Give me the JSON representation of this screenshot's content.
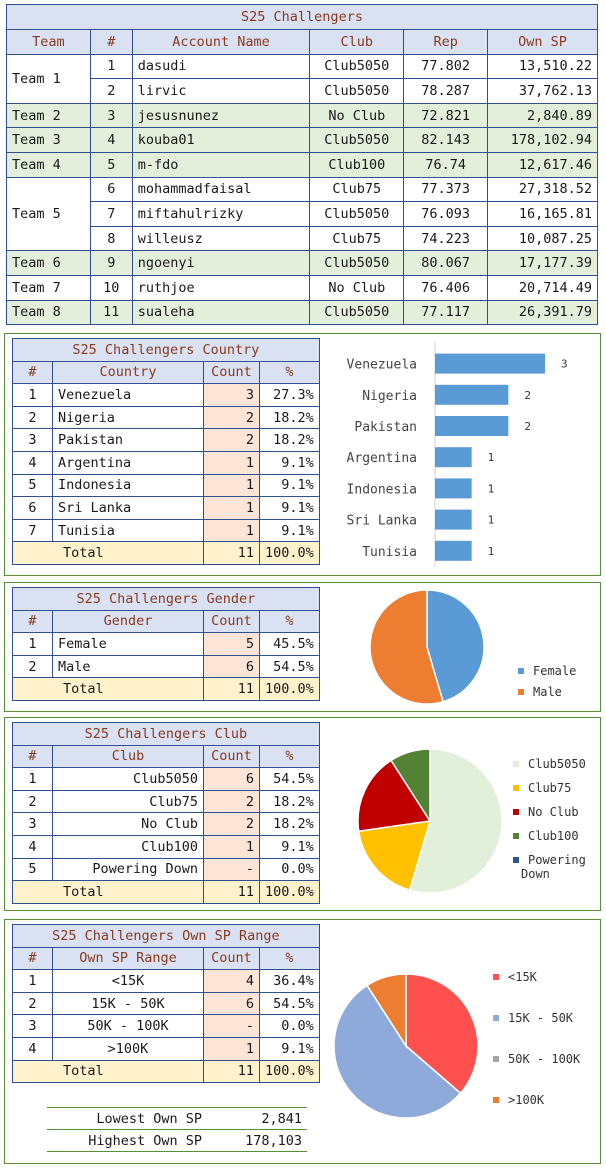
{
  "main": {
    "title": "S25 Challengers",
    "headers": [
      "Team",
      "#",
      "Account Name",
      "Club",
      "Rep",
      "Own SP"
    ],
    "rows": [
      {
        "team": "Team 1",
        "num": "1",
        "name": "dasudi",
        "club": "Club5050",
        "rep": "77.802",
        "sp": "13,510.22"
      },
      {
        "team": "",
        "num": "2",
        "name": "lirvic",
        "club": "Club5050",
        "rep": "78.287",
        "sp": "37,762.13"
      },
      {
        "team": "Team 2",
        "num": "3",
        "name": "jesusnunez",
        "club": "No Club",
        "rep": "72.821",
        "sp": "2,840.89"
      },
      {
        "team": "Team 3",
        "num": "4",
        "name": "kouba01",
        "club": "Club5050",
        "rep": "82.143",
        "sp": "178,102.94"
      },
      {
        "team": "Team 4",
        "num": "5",
        "name": "m-fdo",
        "club": "Club100",
        "rep": "76.74",
        "sp": "12,617.46"
      },
      {
        "team": "Team 5",
        "num": "6",
        "name": "mohammadfaisal",
        "club": "Club75",
        "rep": "77.373",
        "sp": "27,318.52"
      },
      {
        "team": "",
        "num": "7",
        "name": "miftahulrizky",
        "club": "Club5050",
        "rep": "76.093",
        "sp": "16,165.81"
      },
      {
        "team": "",
        "num": "8",
        "name": "willeusz",
        "club": "Club75",
        "rep": "74.223",
        "sp": "10,087.25"
      },
      {
        "team": "Team 6",
        "num": "9",
        "name": "ngoenyi",
        "club": "Club5050",
        "rep": "80.067",
        "sp": "17,177.39"
      },
      {
        "team": "Team 7",
        "num": "10",
        "name": "ruthjoe",
        "club": "No Club",
        "rep": "76.406",
        "sp": "20,714.49"
      },
      {
        "team": "Team 8",
        "num": "11",
        "name": "sualeha",
        "club": "Club5050",
        "rep": "77.117",
        "sp": "26,391.79"
      }
    ]
  },
  "country": {
    "title": "S25 Challengers Country",
    "headers": [
      "#",
      "Country",
      "Count",
      "%"
    ],
    "rows": [
      {
        "num": "1",
        "label": "Venezuela",
        "count": "3",
        "pct": "27.3%"
      },
      {
        "num": "2",
        "label": "Nigeria",
        "count": "2",
        "pct": "18.2%"
      },
      {
        "num": "3",
        "label": "Pakistan",
        "count": "2",
        "pct": "18.2%"
      },
      {
        "num": "4",
        "label": "Argentina",
        "count": "1",
        "pct": "9.1%"
      },
      {
        "num": "5",
        "label": "Indonesia",
        "count": "1",
        "pct": "9.1%"
      },
      {
        "num": "6",
        "label": "Sri Lanka",
        "count": "1",
        "pct": "9.1%"
      },
      {
        "num": "7",
        "label": "Tunisia",
        "count": "1",
        "pct": "9.1%"
      }
    ],
    "total": {
      "label": "Total",
      "count": "11",
      "pct": "100.0%"
    }
  },
  "gender": {
    "title": "S25 Challengers Gender",
    "headers": [
      "#",
      "Gender",
      "Count",
      "%"
    ],
    "rows": [
      {
        "num": "1",
        "label": "Female",
        "count": "5",
        "pct": "45.5%"
      },
      {
        "num": "2",
        "label": "Male",
        "count": "6",
        "pct": "54.5%"
      }
    ],
    "total": {
      "label": "Total",
      "count": "11",
      "pct": "100.0%"
    }
  },
  "club": {
    "title": "S25 Challengers Club",
    "headers": [
      "#",
      "Club",
      "Count",
      "%"
    ],
    "rows": [
      {
        "num": "1",
        "label": "Club5050",
        "count": "6",
        "pct": "54.5%"
      },
      {
        "num": "2",
        "label": "Club75",
        "count": "2",
        "pct": "18.2%"
      },
      {
        "num": "3",
        "label": "No Club",
        "count": "2",
        "pct": "18.2%"
      },
      {
        "num": "4",
        "label": "Club100",
        "count": "1",
        "pct": "9.1%"
      },
      {
        "num": "5",
        "label": "Powering Down",
        "count": "-",
        "pct": "0.0%"
      }
    ],
    "total": {
      "label": "Total",
      "count": "11",
      "pct": "100.0%"
    }
  },
  "sprange": {
    "title": "S25 Challengers Own SP Range",
    "headers": [
      "#",
      "Own SP Range",
      "Count",
      "%"
    ],
    "rows": [
      {
        "num": "1",
        "label": "<15K",
        "count": "4",
        "pct": "36.4%"
      },
      {
        "num": "2",
        "label": "15K - 50K",
        "count": "6",
        "pct": "54.5%"
      },
      {
        "num": "3",
        "label": "50K - 100K",
        "count": "-",
        "pct": "0.0%"
      },
      {
        "num": "4",
        "label": ">100K",
        "count": "1",
        "pct": "9.1%"
      }
    ],
    "total": {
      "label": "Total",
      "count": "11",
      "pct": "100.0%"
    }
  },
  "minmax": {
    "lowest_label": "Lowest Own SP",
    "lowest_value": "2,841",
    "highest_label": "Highest Own SP",
    "highest_value": "178,103"
  },
  "chart_data": [
    {
      "type": "bar",
      "orientation": "horizontal",
      "categories": [
        "Venezuela",
        "Nigeria",
        "Pakistan",
        "Argentina",
        "Indonesia",
        "Sri Lanka",
        "Tunisia"
      ],
      "values": [
        3,
        2,
        2,
        1,
        1,
        1,
        1
      ],
      "data_labels": true,
      "color": "#5b9bd5"
    },
    {
      "type": "pie",
      "labels": [
        "Female",
        "Male"
      ],
      "values": [
        5,
        6
      ],
      "colors": [
        "#5b9bd5",
        "#ed7d31"
      ],
      "legend": "right"
    },
    {
      "type": "pie",
      "labels": [
        "Club5050",
        "Club75",
        "No Club",
        "Club100",
        "Powering Down"
      ],
      "values": [
        6,
        2,
        2,
        1,
        0
      ],
      "colors": [
        "#e2efda",
        "#ffc000",
        "#c00000",
        "#548235",
        "#2f5597"
      ],
      "legend": "right"
    },
    {
      "type": "pie",
      "labels": [
        "<15K",
        "15K - 50K",
        "50K - 100K",
        ">100K"
      ],
      "values": [
        4,
        6,
        0,
        1
      ],
      "colors": [
        "#ff5050",
        "#8eaadb",
        "#a5a5a5",
        "#ed7d31"
      ],
      "legend": "right"
    }
  ]
}
